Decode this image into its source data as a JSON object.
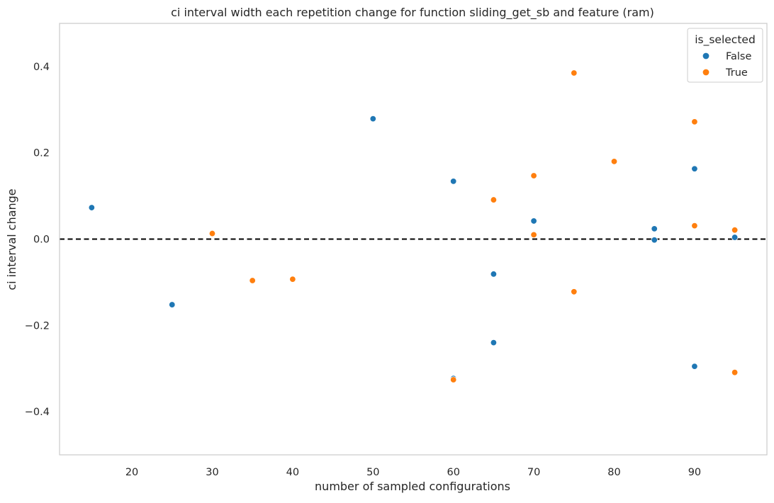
{
  "chart_data": {
    "type": "scatter",
    "title": "ci interval width each repetition change for function sliding_get_sb and feature (ram)",
    "xlabel": "number of sampled configurations",
    "ylabel": "ci interval change",
    "xlim": [
      11.0,
      99.0
    ],
    "ylim": [
      -0.5,
      0.5
    ],
    "xticks": [
      20,
      30,
      40,
      50,
      60,
      70,
      80,
      90
    ],
    "xtick_labels": [
      "20",
      "30",
      "40",
      "50",
      "60",
      "70",
      "80",
      "90"
    ],
    "yticks": [
      -0.4,
      -0.2,
      0.0,
      0.2,
      0.4
    ],
    "ytick_labels": [
      "−0.4",
      "−0.2",
      "0.0",
      "0.2",
      "0.4"
    ],
    "grid": false,
    "reference_line": {
      "y": 0.0,
      "style": "dashed",
      "color": "#000000"
    },
    "legend": {
      "title": "is_selected",
      "placement": "top-right"
    },
    "series": [
      {
        "name": "False",
        "color": "#1f77b4",
        "points": [
          {
            "x": 15,
            "y": 0.073
          },
          {
            "x": 25,
            "y": -0.152
          },
          {
            "x": 50,
            "y": 0.279
          },
          {
            "x": 60,
            "y": 0.134
          },
          {
            "x": 60,
            "y": -0.323
          },
          {
            "x": 65,
            "y": -0.081
          },
          {
            "x": 65,
            "y": -0.24
          },
          {
            "x": 70,
            "y": 0.042
          },
          {
            "x": 85,
            "y": 0.024
          },
          {
            "x": 85,
            "y": -0.002
          },
          {
            "x": 90,
            "y": 0.163
          },
          {
            "x": 90,
            "y": -0.295
          },
          {
            "x": 95,
            "y": 0.004
          }
        ]
      },
      {
        "name": "True",
        "color": "#ff7f0e",
        "points": [
          {
            "x": 30,
            "y": 0.013
          },
          {
            "x": 35,
            "y": -0.096
          },
          {
            "x": 40,
            "y": -0.093
          },
          {
            "x": 60,
            "y": -0.326
          },
          {
            "x": 65,
            "y": 0.091
          },
          {
            "x": 70,
            "y": 0.147
          },
          {
            "x": 70,
            "y": 0.01
          },
          {
            "x": 75,
            "y": 0.385
          },
          {
            "x": 75,
            "y": -0.122
          },
          {
            "x": 80,
            "y": 0.18
          },
          {
            "x": 90,
            "y": 0.272
          },
          {
            "x": 90,
            "y": 0.031
          },
          {
            "x": 95,
            "y": 0.021
          },
          {
            "x": 95,
            "y": -0.309
          }
        ]
      }
    ]
  }
}
